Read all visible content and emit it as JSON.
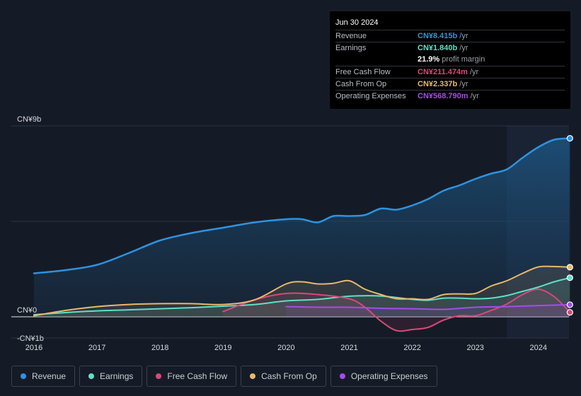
{
  "tooltip": {
    "date": "Jun 30 2024",
    "rows": [
      {
        "label": "Revenue",
        "value": "CN¥8.415b",
        "unit": "/yr",
        "color": "#2e93e0"
      },
      {
        "label": "Earnings",
        "value": "CN¥1.840b",
        "unit": "/yr",
        "color": "#5fe0c8"
      },
      {
        "label": "",
        "value": "21.9%",
        "unit": "profit margin",
        "color": "#ffffff"
      },
      {
        "label": "Free Cash Flow",
        "value": "CN¥211.474m",
        "unit": "/yr",
        "color": "#d9487a"
      },
      {
        "label": "Cash From Op",
        "value": "CN¥2.337b",
        "unit": "/yr",
        "color": "#e8b86a"
      },
      {
        "label": "Operating Expenses",
        "value": "CN¥568.790m",
        "unit": "/yr",
        "color": "#a64bf0"
      }
    ]
  },
  "legend": [
    {
      "label": "Revenue",
      "color": "#2e93e0"
    },
    {
      "label": "Earnings",
      "color": "#5fe0c8"
    },
    {
      "label": "Free Cash Flow",
      "color": "#d9487a"
    },
    {
      "label": "Cash From Op",
      "color": "#e8b86a"
    },
    {
      "label": "Operating Expenses",
      "color": "#a64bf0"
    }
  ],
  "chart_data": {
    "type": "area",
    "title": "",
    "xlabel": "",
    "ylabel": "",
    "ylim": [
      -1,
      9
    ],
    "xlim": [
      2016,
      2024.5
    ],
    "y_tick_labels": [
      {
        "value": 9,
        "label": "CN¥9b"
      },
      {
        "value": 0,
        "label": "CN¥0"
      },
      {
        "value": -1,
        "label": "-CN¥1b"
      }
    ],
    "x_tick_labels": [
      "2016",
      "2017",
      "2018",
      "2019",
      "2020",
      "2021",
      "2022",
      "2023",
      "2024"
    ],
    "forecast_shade_start": 2023.5,
    "series": [
      {
        "name": "Revenue",
        "color": "#2e93e0",
        "x": [
          2016,
          2016.5,
          2017,
          2017.5,
          2018,
          2018.5,
          2019,
          2019.5,
          2020,
          2020.25,
          2020.5,
          2020.75,
          2021,
          2021.25,
          2021.5,
          2021.75,
          2022,
          2022.25,
          2022.5,
          2022.75,
          2023,
          2023.25,
          2023.5,
          2023.75,
          2024,
          2024.25,
          2024.5
        ],
        "values": [
          2.05,
          2.2,
          2.45,
          3.0,
          3.6,
          3.95,
          4.2,
          4.45,
          4.6,
          4.6,
          4.45,
          4.75,
          4.75,
          4.8,
          5.1,
          5.05,
          5.25,
          5.55,
          5.95,
          6.2,
          6.5,
          6.75,
          6.95,
          7.5,
          8.0,
          8.35,
          8.415
        ]
      },
      {
        "name": "Earnings",
        "color": "#5fe0c8",
        "x": [
          2016,
          2016.5,
          2017,
          2017.5,
          2018,
          2018.5,
          2019,
          2019.5,
          2020,
          2020.5,
          2021,
          2021.5,
          2022,
          2022.25,
          2022.5,
          2022.75,
          2023,
          2023.25,
          2023.5,
          2023.75,
          2024,
          2024.25,
          2024.5
        ],
        "values": [
          0.1,
          0.2,
          0.28,
          0.33,
          0.38,
          0.43,
          0.5,
          0.58,
          0.75,
          0.82,
          0.97,
          0.98,
          0.82,
          0.78,
          0.88,
          0.88,
          0.85,
          0.88,
          1.0,
          1.2,
          1.4,
          1.65,
          1.84
        ]
      },
      {
        "name": "Free Cash Flow",
        "color": "#d9487a",
        "x": [
          2019,
          2019.5,
          2020,
          2020.5,
          2021,
          2021.25,
          2021.5,
          2021.75,
          2022,
          2022.25,
          2022.5,
          2022.75,
          2023,
          2023.25,
          2023.5,
          2023.75,
          2024,
          2024.25,
          2024.5
        ],
        "values": [
          0.25,
          0.8,
          1.1,
          1.05,
          0.85,
          0.45,
          -0.2,
          -0.65,
          -0.6,
          -0.5,
          -0.15,
          0.05,
          0.05,
          0.3,
          0.6,
          1.05,
          1.3,
          0.95,
          0.21
        ]
      },
      {
        "name": "Cash From Op",
        "color": "#e8b86a",
        "x": [
          2016,
          2016.5,
          2017,
          2017.5,
          2018,
          2018.5,
          2019,
          2019.5,
          2020,
          2020.25,
          2020.5,
          2020.75,
          2021,
          2021.25,
          2021.5,
          2021.75,
          2022,
          2022.25,
          2022.5,
          2022.75,
          2023,
          2023.25,
          2023.5,
          2023.75,
          2024,
          2024.25,
          2024.5
        ],
        "values": [
          0.05,
          0.3,
          0.48,
          0.58,
          0.62,
          0.62,
          0.58,
          0.8,
          1.55,
          1.65,
          1.55,
          1.58,
          1.7,
          1.3,
          1.05,
          0.85,
          0.85,
          0.82,
          1.05,
          1.08,
          1.1,
          1.45,
          1.7,
          2.05,
          2.35,
          2.37,
          2.337
        ]
      },
      {
        "name": "Operating Expenses",
        "color": "#a64bf0",
        "x": [
          2020,
          2020.5,
          2021,
          2021.5,
          2022,
          2022.5,
          2023,
          2023.5,
          2024,
          2024.5
        ],
        "values": [
          0.48,
          0.45,
          0.45,
          0.4,
          0.38,
          0.35,
          0.45,
          0.48,
          0.53,
          0.569
        ]
      }
    ]
  }
}
